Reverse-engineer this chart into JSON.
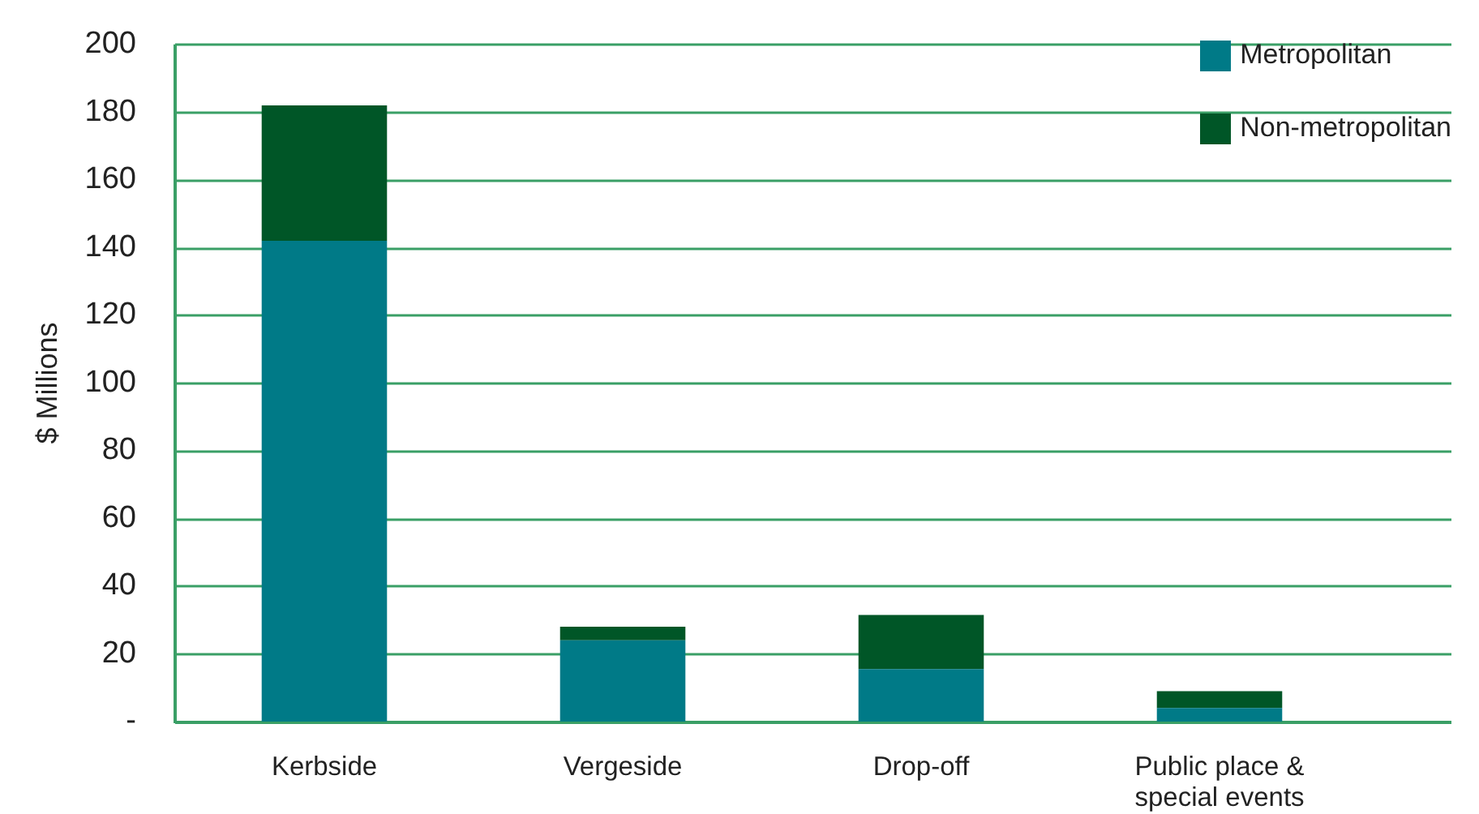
{
  "chart_data": {
    "type": "bar",
    "ylabel": "$ Millions",
    "categories": [
      "Kerbside",
      "Vergeside",
      "Drop-off",
      "Public place & special events"
    ],
    "series": [
      {
        "name": "Metropolitan",
        "color": "#007a87",
        "values": [
          142,
          24,
          15.5,
          4
        ]
      },
      {
        "name": "Non-metropolitan",
        "color": "#005627",
        "values": [
          40,
          4,
          16,
          5
        ]
      }
    ],
    "stacked": true,
    "ylim": [
      0,
      200
    ],
    "yticks": [
      {
        "value": 0,
        "label": "-"
      },
      20,
      40,
      60,
      80,
      100,
      120,
      140,
      160,
      180,
      200
    ],
    "grid": "y",
    "legend": "top right"
  }
}
